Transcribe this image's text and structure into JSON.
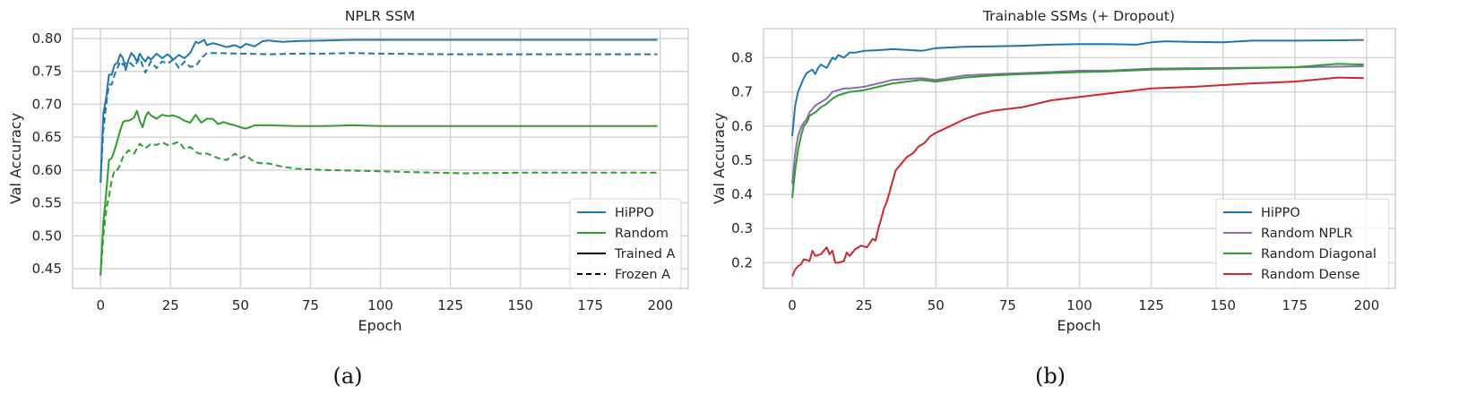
{
  "chart_data": [
    {
      "type": "line",
      "panel": "(a)",
      "title": "NPLR SSM",
      "xlabel": "Epoch",
      "ylabel": "Val Accuracy",
      "xlim": [
        -10,
        210
      ],
      "ylim": [
        0.42,
        0.815
      ],
      "xticks": [
        0,
        25,
        50,
        75,
        100,
        125,
        150,
        175,
        200
      ],
      "yticks": [
        0.45,
        0.5,
        0.55,
        0.6,
        0.65,
        0.7,
        0.75,
        0.8
      ],
      "ytick_labels": [
        "0.45",
        "0.50",
        "0.55",
        "0.60",
        "0.65",
        "0.70",
        "0.75",
        "0.80"
      ],
      "grid": true,
      "legend_position": "lower right",
      "legend": [
        {
          "label": "HiPPO",
          "color": "#1f77b4",
          "style": "solid"
        },
        {
          "label": "Random",
          "color": "#2ca02c",
          "style": "solid"
        },
        {
          "label": "Trained A",
          "color": "#000000",
          "style": "solid"
        },
        {
          "label": "Frozen A",
          "color": "#000000",
          "style": "dashed"
        }
      ],
      "series": [
        {
          "name": "HiPPO (Trained A)",
          "color": "#1f77b4",
          "style": "solid",
          "x": [
            0,
            1,
            2,
            3,
            4,
            5,
            6,
            7,
            8,
            9,
            10,
            11,
            12,
            13,
            14,
            15,
            16,
            17,
            18,
            20,
            22,
            24,
            26,
            28,
            30,
            32,
            34,
            35,
            37,
            38,
            40,
            42,
            45,
            48,
            50,
            52,
            55,
            58,
            60,
            65,
            70,
            80,
            90,
            100,
            125,
            150,
            175,
            199
          ],
          "values": [
            0.581,
            0.685,
            0.71,
            0.745,
            0.745,
            0.76,
            0.763,
            0.776,
            0.77,
            0.752,
            0.768,
            0.778,
            0.773,
            0.765,
            0.777,
            0.77,
            0.765,
            0.772,
            0.768,
            0.777,
            0.77,
            0.776,
            0.768,
            0.775,
            0.77,
            0.778,
            0.795,
            0.793,
            0.798,
            0.79,
            0.793,
            0.791,
            0.787,
            0.79,
            0.786,
            0.792,
            0.788,
            0.796,
            0.797,
            0.795,
            0.796,
            0.797,
            0.798,
            0.798,
            0.798,
            0.798,
            0.798,
            0.798
          ]
        },
        {
          "name": "HiPPO (Frozen A)",
          "color": "#1f77b4",
          "style": "dashed",
          "x": [
            0,
            1,
            2,
            3,
            4,
            5,
            6,
            7,
            8,
            10,
            12,
            14,
            16,
            18,
            20,
            22,
            24,
            26,
            28,
            30,
            32,
            34,
            36,
            38,
            40,
            50,
            60,
            70,
            80,
            90,
            100,
            125,
            150,
            175,
            199
          ],
          "values": [
            0.581,
            0.66,
            0.7,
            0.73,
            0.73,
            0.745,
            0.755,
            0.765,
            0.76,
            0.765,
            0.757,
            0.77,
            0.748,
            0.765,
            0.755,
            0.765,
            0.762,
            0.768,
            0.755,
            0.765,
            0.757,
            0.758,
            0.77,
            0.778,
            0.778,
            0.777,
            0.776,
            0.777,
            0.777,
            0.778,
            0.777,
            0.776,
            0.776,
            0.776,
            0.776
          ]
        },
        {
          "name": "Random (Trained A)",
          "color": "#2ca02c",
          "style": "solid",
          "x": [
            0,
            1,
            2,
            3,
            4,
            5,
            6,
            7,
            8,
            9,
            10,
            11,
            12,
            13,
            14,
            15,
            16,
            17,
            18,
            20,
            22,
            24,
            26,
            28,
            30,
            32,
            34,
            36,
            38,
            40,
            42,
            44,
            46,
            48,
            50,
            52,
            55,
            60,
            70,
            80,
            90,
            100,
            125,
            150,
            175,
            199
          ],
          "values": [
            0.44,
            0.52,
            0.565,
            0.615,
            0.618,
            0.63,
            0.645,
            0.66,
            0.673,
            0.675,
            0.675,
            0.677,
            0.68,
            0.69,
            0.675,
            0.665,
            0.68,
            0.688,
            0.683,
            0.678,
            0.684,
            0.682,
            0.683,
            0.68,
            0.675,
            0.672,
            0.684,
            0.672,
            0.678,
            0.678,
            0.67,
            0.673,
            0.67,
            0.668,
            0.665,
            0.663,
            0.668,
            0.668,
            0.667,
            0.667,
            0.668,
            0.667,
            0.667,
            0.667,
            0.667,
            0.667
          ]
        },
        {
          "name": "Random (Frozen A)",
          "color": "#2ca02c",
          "style": "dashed",
          "x": [
            0,
            1,
            2,
            3,
            4,
            5,
            6,
            7,
            8,
            10,
            12,
            14,
            16,
            18,
            20,
            22,
            24,
            26,
            28,
            30,
            32,
            35,
            38,
            40,
            42,
            45,
            48,
            50,
            52,
            55,
            58,
            60,
            65,
            70,
            80,
            90,
            100,
            110,
            120,
            130,
            150,
            175,
            199
          ],
          "values": [
            0.44,
            0.5,
            0.54,
            0.56,
            0.585,
            0.6,
            0.6,
            0.608,
            0.62,
            0.63,
            0.625,
            0.64,
            0.633,
            0.64,
            0.638,
            0.642,
            0.638,
            0.64,
            0.643,
            0.632,
            0.635,
            0.625,
            0.625,
            0.622,
            0.618,
            0.615,
            0.625,
            0.618,
            0.622,
            0.612,
            0.61,
            0.61,
            0.605,
            0.602,
            0.6,
            0.599,
            0.598,
            0.597,
            0.596,
            0.595,
            0.596,
            0.596,
            0.596
          ]
        }
      ]
    },
    {
      "type": "line",
      "panel": "(b)",
      "title": "Trainable SSMs (+ Dropout)",
      "xlabel": "Epoch",
      "ylabel": "Val Accuracy",
      "xlim": [
        -10,
        210
      ],
      "ylim": [
        0.125,
        0.885
      ],
      "xticks": [
        0,
        25,
        50,
        75,
        100,
        125,
        150,
        175,
        200
      ],
      "yticks": [
        0.2,
        0.3,
        0.4,
        0.5,
        0.6,
        0.7,
        0.8
      ],
      "ytick_labels": [
        "0.2",
        "0.3",
        "0.4",
        "0.5",
        "0.6",
        "0.7",
        "0.8"
      ],
      "grid": true,
      "legend_position": "lower right",
      "legend": [
        {
          "label": "HiPPO",
          "color": "#1f77b4",
          "style": "solid"
        },
        {
          "label": "Random NPLR",
          "color": "#9467bd",
          "style": "solid"
        },
        {
          "label": "Random Diagonal",
          "color": "#2ca02c",
          "style": "solid"
        },
        {
          "label": "Random Dense",
          "color": "#d62728",
          "style": "solid"
        }
      ],
      "series": [
        {
          "name": "HiPPO",
          "color": "#1f77b4",
          "style": "solid",
          "x": [
            0,
            1,
            2,
            3,
            4,
            5,
            6,
            7,
            8,
            9,
            10,
            12,
            14,
            15,
            16,
            18,
            20,
            22,
            25,
            30,
            35,
            40,
            45,
            50,
            55,
            60,
            70,
            80,
            90,
            100,
            110,
            120,
            125,
            130,
            140,
            150,
            160,
            175,
            190,
            199
          ],
          "values": [
            0.57,
            0.66,
            0.7,
            0.72,
            0.74,
            0.755,
            0.76,
            0.765,
            0.752,
            0.77,
            0.78,
            0.77,
            0.8,
            0.795,
            0.808,
            0.8,
            0.815,
            0.815,
            0.82,
            0.822,
            0.825,
            0.823,
            0.82,
            0.828,
            0.83,
            0.832,
            0.833,
            0.835,
            0.838,
            0.84,
            0.84,
            0.838,
            0.845,
            0.848,
            0.846,
            0.845,
            0.85,
            0.85,
            0.851,
            0.852
          ]
        },
        {
          "name": "Random NPLR",
          "color": "#9467bd",
          "style": "solid",
          "x": [
            0,
            1,
            2,
            3,
            4,
            5,
            6,
            8,
            10,
            12,
            14,
            16,
            18,
            20,
            25,
            30,
            35,
            40,
            45,
            50,
            60,
            70,
            80,
            90,
            100,
            110,
            125,
            150,
            175,
            199
          ],
          "values": [
            0.43,
            0.52,
            0.57,
            0.595,
            0.61,
            0.62,
            0.64,
            0.66,
            0.67,
            0.68,
            0.7,
            0.705,
            0.71,
            0.71,
            0.715,
            0.725,
            0.735,
            0.738,
            0.74,
            0.735,
            0.748,
            0.752,
            0.755,
            0.758,
            0.762,
            0.762,
            0.768,
            0.77,
            0.772,
            0.775
          ]
        },
        {
          "name": "Random Diagonal",
          "color": "#2ca02c",
          "style": "solid",
          "x": [
            0,
            1,
            2,
            3,
            4,
            5,
            6,
            8,
            10,
            12,
            14,
            16,
            18,
            20,
            25,
            30,
            35,
            40,
            45,
            50,
            60,
            70,
            80,
            90,
            100,
            110,
            125,
            150,
            175,
            190,
            199
          ],
          "values": [
            0.39,
            0.47,
            0.53,
            0.57,
            0.6,
            0.61,
            0.63,
            0.64,
            0.655,
            0.665,
            0.68,
            0.69,
            0.695,
            0.7,
            0.705,
            0.715,
            0.725,
            0.73,
            0.735,
            0.73,
            0.742,
            0.748,
            0.752,
            0.755,
            0.758,
            0.76,
            0.765,
            0.768,
            0.772,
            0.782,
            0.78
          ]
        },
        {
          "name": "Random Dense",
          "color": "#d62728",
          "style": "solid",
          "x": [
            0,
            1,
            2,
            3,
            4,
            5,
            6,
            7,
            8,
            10,
            12,
            13,
            14,
            15,
            16,
            18,
            19,
            20,
            22,
            24,
            26,
            28,
            29,
            30,
            31,
            32,
            33,
            34,
            36,
            38,
            40,
            42,
            44,
            46,
            48,
            50,
            55,
            60,
            65,
            70,
            80,
            90,
            100,
            110,
            125,
            140,
            150,
            160,
            175,
            185,
            190,
            199
          ],
          "values": [
            0.16,
            0.18,
            0.19,
            0.195,
            0.21,
            0.208,
            0.205,
            0.235,
            0.22,
            0.225,
            0.245,
            0.225,
            0.235,
            0.2,
            0.2,
            0.205,
            0.23,
            0.22,
            0.24,
            0.25,
            0.245,
            0.27,
            0.265,
            0.3,
            0.33,
            0.36,
            0.38,
            0.41,
            0.47,
            0.49,
            0.51,
            0.52,
            0.54,
            0.55,
            0.57,
            0.58,
            0.6,
            0.62,
            0.635,
            0.645,
            0.655,
            0.675,
            0.685,
            0.695,
            0.71,
            0.715,
            0.72,
            0.725,
            0.73,
            0.738,
            0.742,
            0.74
          ]
        }
      ]
    }
  ],
  "captions": {
    "a": "(a)",
    "b": "(b)"
  }
}
